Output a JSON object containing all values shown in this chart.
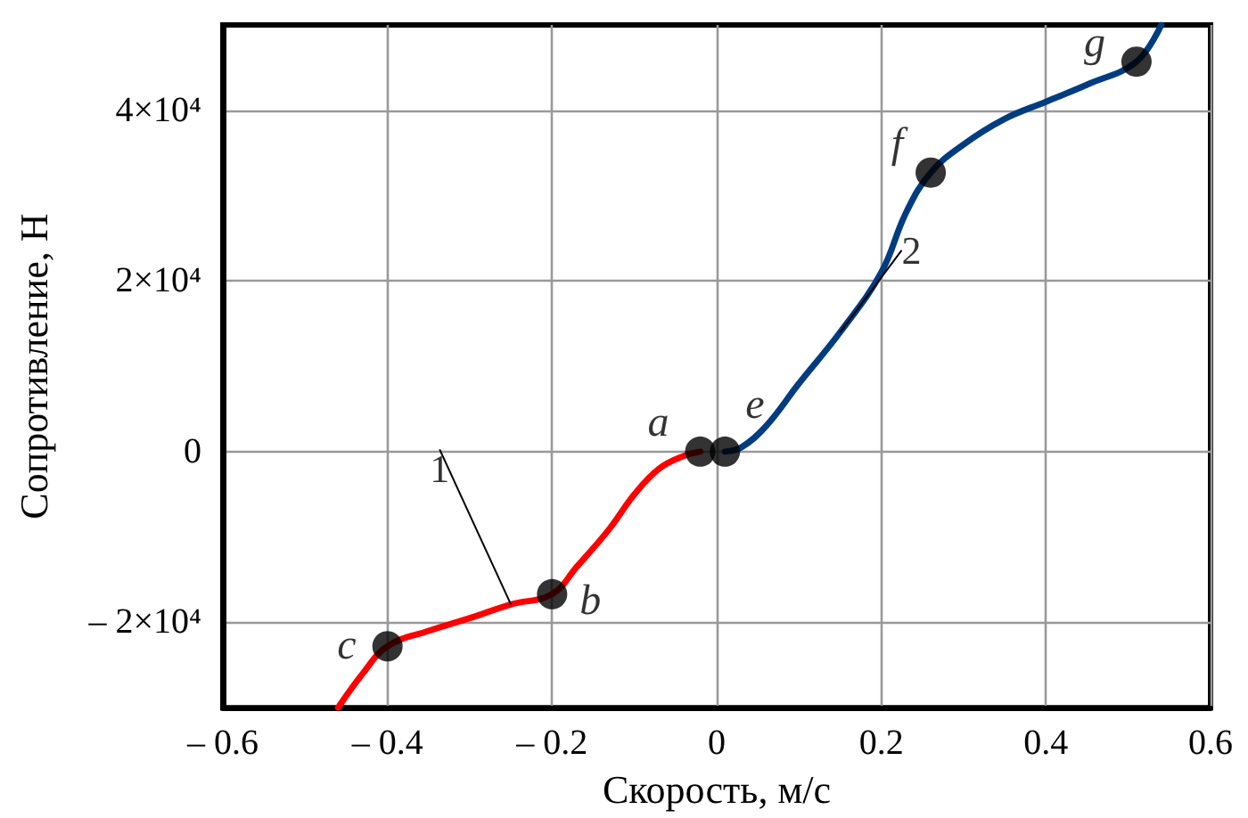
{
  "chart_data": {
    "type": "line",
    "xlabel": "Скорость, м/с",
    "ylabel": "Сопротивление, Н",
    "xlim": [
      -0.6,
      0.6
    ],
    "ylim": [
      -30000,
      50000
    ],
    "xticks": [
      {
        "value": -0.6,
        "label": "– 0.6"
      },
      {
        "value": -0.4,
        "label": "– 0.4"
      },
      {
        "value": -0.2,
        "label": "– 0.2"
      },
      0,
      0.2,
      0.4,
      0.6
    ],
    "yticks": [
      {
        "value": -20000,
        "label": "– 2×10⁴"
      },
      0,
      {
        "value": 20000,
        "label": "2×10⁴"
      },
      {
        "value": 40000,
        "label": "4×10⁴"
      }
    ],
    "grid": true,
    "legend": false,
    "marker": "none",
    "line_style": "solid",
    "series": [
      {
        "name": "1",
        "color": "#ff0000",
        "x": [
          -0.46,
          -0.43,
          -0.4,
          -0.35,
          -0.3,
          -0.25,
          -0.2,
          -0.17,
          -0.13,
          -0.1,
          -0.07,
          -0.04,
          -0.02
        ],
        "values": [
          -30000,
          -26000,
          -22800,
          -21000,
          -19500,
          -17900,
          -16700,
          -13500,
          -9000,
          -5000,
          -2000,
          -500,
          0
        ]
      },
      {
        "name": "2",
        "color": "#003c80",
        "x": [
          0.01,
          0.03,
          0.06,
          0.1,
          0.15,
          0.2,
          0.23,
          0.26,
          0.3,
          0.35,
          0.4,
          0.45,
          0.51,
          0.54
        ],
        "values": [
          0,
          500,
          3000,
          8000,
          14000,
          21000,
          28000,
          32700,
          36000,
          39000,
          41000,
          43000,
          45700,
          50000
        ]
      }
    ],
    "annotations": [
      {
        "text": "a",
        "x": -0.02,
        "y": 0
      },
      {
        "text": "b",
        "x": -0.2,
        "y": -16700
      },
      {
        "text": "c",
        "x": -0.4,
        "y": -22800
      },
      {
        "text": "e",
        "x": 0.01,
        "y": 0
      },
      {
        "text": "f",
        "x": 0.26,
        "y": 32700
      },
      {
        "text": "g",
        "x": 0.51,
        "y": 45700
      }
    ]
  }
}
